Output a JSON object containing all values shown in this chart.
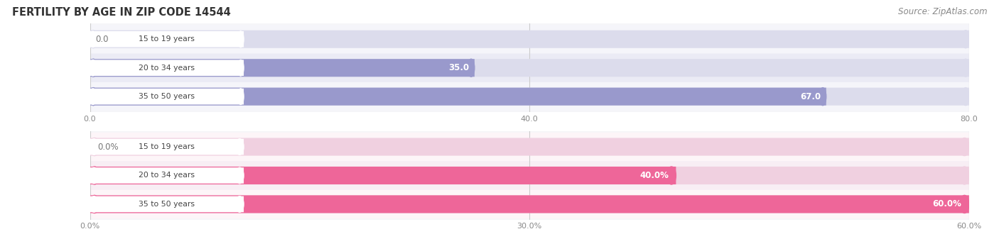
{
  "title": "FERTILITY BY AGE IN ZIP CODE 14544",
  "source": "Source: ZipAtlas.com",
  "top_chart": {
    "categories": [
      "15 to 19 years",
      "20 to 34 years",
      "35 to 50 years"
    ],
    "values": [
      0.0,
      35.0,
      67.0
    ],
    "xlim": [
      0,
      80
    ],
    "xticks": [
      0.0,
      40.0,
      80.0
    ],
    "xtick_labels": [
      "0.0",
      "40.0",
      "80.0"
    ],
    "bar_color": "#9999cc",
    "bg_bar_color": "#dcdcec",
    "row_bg_colors": [
      "#f5f5fa",
      "#ebebf5",
      "#f5f5fa"
    ]
  },
  "bottom_chart": {
    "categories": [
      "15 to 19 years",
      "20 to 34 years",
      "35 to 50 years"
    ],
    "values": [
      0.0,
      40.0,
      60.0
    ],
    "xlim": [
      0,
      60
    ],
    "xticks": [
      0.0,
      30.0,
      60.0
    ],
    "xtick_labels": [
      "0.0%",
      "30.0%",
      "60.0%"
    ],
    "bar_color": "#ee6699",
    "bg_bar_color": "#f0d0e0",
    "row_bg_colors": [
      "#fdf5f8",
      "#f8eef4",
      "#fdf5f8"
    ]
  },
  "label_bg_color": "#ffffff",
  "label_text_color": "#444444",
  "title_color": "#333333",
  "source_color": "#888888",
  "bar_height": 0.62,
  "figsize": [
    14.06,
    3.3
  ],
  "dpi": 100
}
